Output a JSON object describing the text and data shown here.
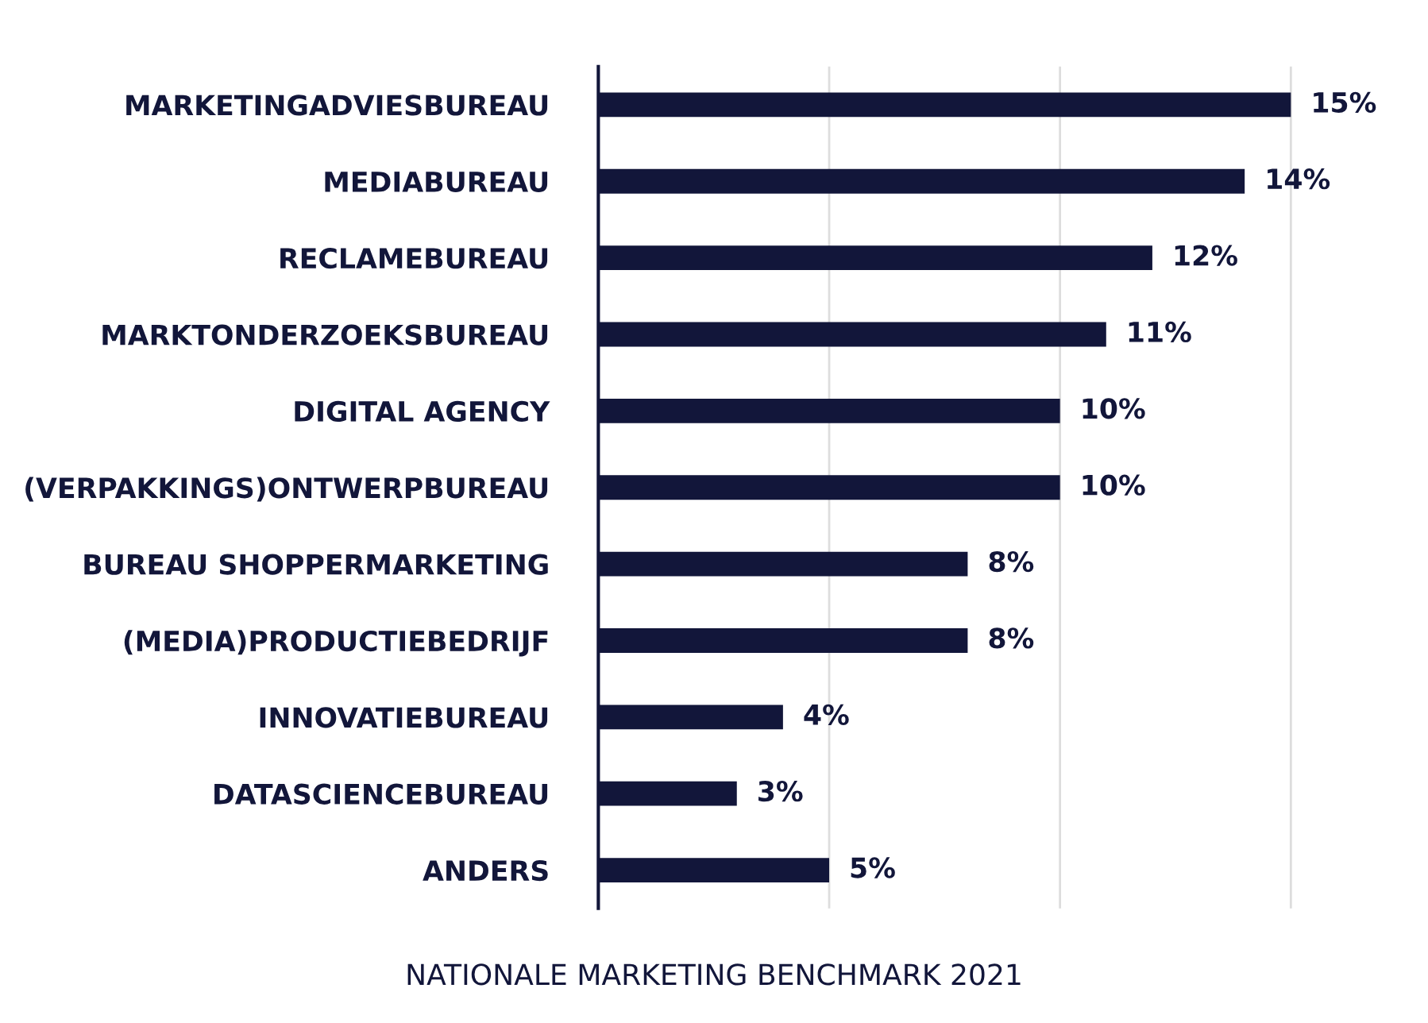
{
  "chart_data": {
    "type": "bar",
    "orientation": "horizontal",
    "categories": [
      "MARKETINGADVIESBUREAU",
      "MEDIABUREAU",
      "RECLAMEBUREAU",
      "MARKTONDERZOEKSBUREAU",
      "DIGITAL AGENCY",
      "(VERPAKKINGS)ONTWERPBUREAU",
      "BUREAU SHOPPERMARKETING",
      "(MEDIA)PRODUCTIEBEDRIJF",
      "INNOVATIEBUREAU",
      "DATASCIENCEBUREAU",
      "ANDERS"
    ],
    "values": [
      15,
      14,
      12,
      11,
      10,
      10,
      8,
      8,
      4,
      3,
      5
    ],
    "color": "#12163a",
    "value_labels": [
      "15%",
      "14%",
      "12%",
      "11%",
      "10%",
      "10%",
      "8%",
      "8%",
      "4%",
      "3%",
      "5%"
    ],
    "ref_lines": [
      {
        "axis": "x",
        "value": 5,
        "color": "#dddddd"
      },
      {
        "axis": "x",
        "value": 10,
        "color": "#dddddd"
      },
      {
        "axis": "x",
        "value": 15,
        "color": "#dddddd"
      }
    ],
    "tick_labels": "y",
    "annotations": [
      "NATIONALE MARKETING BENCHMARK 2021"
    ]
  }
}
